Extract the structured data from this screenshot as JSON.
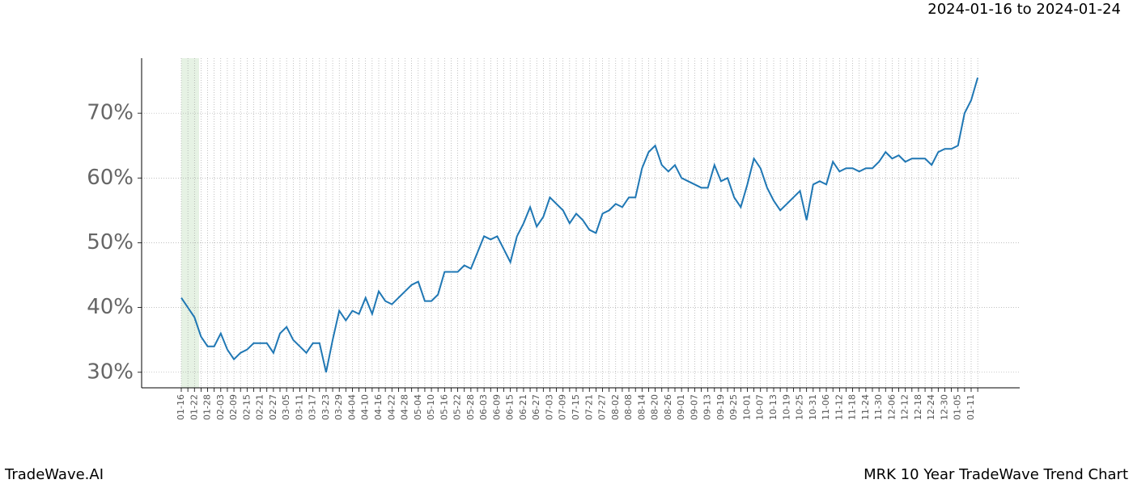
{
  "chart_data": {
    "type": "line",
    "title": "2024-01-16 to 2024-01-24",
    "footer_left": "TradeWave.AI",
    "footer_right": "MRK 10 Year TradeWave Trend Chart",
    "categories": [
      "01-16",
      null,
      "01-22",
      null,
      "01-28",
      null,
      "02-03",
      null,
      "02-09",
      null,
      "02-15",
      null,
      "02-21",
      null,
      "02-27",
      null,
      "03-05",
      null,
      "03-11",
      null,
      "03-17",
      null,
      "03-23",
      null,
      "03-29",
      null,
      "04-04",
      null,
      "04-10",
      null,
      "04-16",
      null,
      "04-22",
      null,
      "04-28",
      null,
      "05-04",
      null,
      "05-10",
      null,
      "05-16",
      null,
      "05-22",
      null,
      "05-28",
      null,
      "06-03",
      null,
      "06-09",
      null,
      "06-15",
      null,
      "06-21",
      null,
      "06-27",
      null,
      "07-03",
      null,
      "07-09",
      null,
      "07-15",
      null,
      "07-21",
      null,
      "07-27",
      null,
      "08-02",
      null,
      "08-08",
      null,
      "08-14",
      null,
      "08-20",
      null,
      "08-26",
      null,
      "09-01",
      null,
      "09-07",
      null,
      "09-13",
      null,
      "09-19",
      null,
      "09-25",
      null,
      "10-01",
      null,
      "10-07",
      null,
      "10-13",
      null,
      "10-19",
      null,
      "10-25",
      null,
      "10-31",
      null,
      "11-06",
      null,
      "11-12",
      null,
      "11-18",
      null,
      "11-24",
      null,
      "11-30",
      null,
      "12-06",
      null,
      "12-12",
      null,
      "12-18",
      null,
      "12-24",
      null,
      "12-30",
      null,
      "01-05",
      null,
      "01-11",
      null
    ],
    "series": [
      {
        "color": "#1f77b4",
        "values": [
          41.5,
          40,
          38.5,
          35.5,
          34,
          34,
          36,
          33.5,
          32,
          33,
          33.5,
          34.5,
          34.5,
          34.5,
          33,
          36,
          37,
          35,
          34,
          33,
          34.5,
          34.5,
          30,
          35,
          39.5,
          38,
          39.5,
          39,
          41.5,
          39,
          42.5,
          41,
          40.5,
          41.5,
          42.5,
          43.5,
          44,
          41,
          41,
          42,
          45.5,
          45.5,
          45.5,
          46.5,
          46,
          48.5,
          51,
          50.5,
          51,
          49,
          47,
          51,
          53,
          55.5,
          52.5,
          54,
          57,
          56,
          55,
          53,
          54.5,
          53.5,
          52,
          51.5,
          54.5,
          55,
          56,
          55.5,
          57,
          57,
          61.5,
          64,
          65,
          62,
          61,
          62,
          60,
          59.5,
          59,
          58.5,
          58.5,
          62,
          59.5,
          60,
          57,
          55.5,
          59,
          63,
          61.5,
          58.5,
          56.5,
          55,
          56,
          57,
          58,
          53.5,
          59,
          59.5,
          59,
          62.5,
          61,
          61.5,
          61.5,
          61,
          61.5,
          61.5,
          62.5,
          64,
          63,
          63.5,
          62.5,
          63,
          63,
          63,
          62,
          64,
          64.5,
          64.5,
          65,
          70,
          72,
          75.5
        ]
      }
    ],
    "ylim": [
      27.6,
      78.5
    ],
    "yticks": [
      {
        "value": 30,
        "label": "30%"
      },
      {
        "value": 40,
        "label": "40%"
      },
      {
        "value": 50,
        "label": "50%"
      },
      {
        "value": 60,
        "label": "60%"
      },
      {
        "value": 70,
        "label": "70%"
      }
    ],
    "grid": true
  }
}
